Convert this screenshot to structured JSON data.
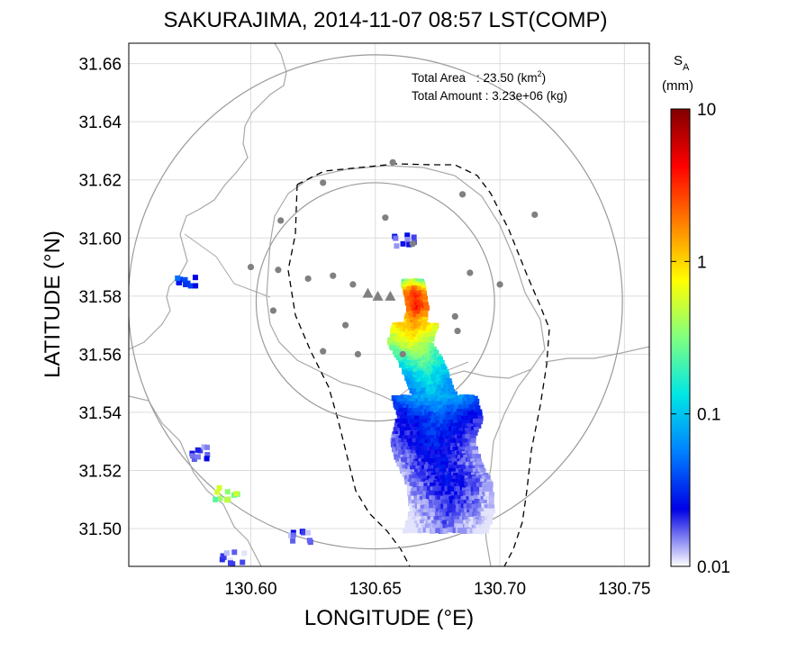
{
  "chart_data": {
    "type": "heatmap",
    "title": "SAKURAJIMA, 2014-11-07 08:57 LST(COMP)",
    "xlabel": "LONGITUDE (°E)",
    "ylabel": "LATITUDE (°N)",
    "xlim": [
      130.551,
      130.76
    ],
    "ylim": [
      31.487,
      31.667
    ],
    "x_ticks": [
      "130.60",
      "130.65",
      "130.70",
      "130.75"
    ],
    "y_ticks": [
      "31.50",
      "31.52",
      "31.54",
      "31.56",
      "31.58",
      "31.60",
      "31.62",
      "31.64",
      "31.66"
    ],
    "x_tick_values": [
      130.6,
      130.65,
      130.7,
      130.75
    ],
    "y_tick_values": [
      31.5,
      31.52,
      31.54,
      31.56,
      31.58,
      31.6,
      31.62,
      31.64,
      31.66
    ],
    "grid": true,
    "annotations": {
      "total_area_label": "Total Area",
      "total_area_sep": ": 23.50 (km",
      "total_area_unit_close": ")",
      "total_area_sup": "2",
      "total_amount_label": "Total Amount : 3.23e+06 (kg)"
    },
    "colorbar": {
      "label_main": "S",
      "label_sub": "A",
      "unit": "(mm)",
      "scale": "log",
      "range": [
        0.01,
        10
      ],
      "ticks": [
        "10",
        "1",
        "0.1",
        "0.01"
      ],
      "tick_values": [
        10,
        1,
        0.1,
        0.01
      ],
      "colors": [
        "#ffffff",
        "#0000e6",
        "#0080ff",
        "#00e6e6",
        "#80ff80",
        "#ffff00",
        "#ff8000",
        "#ff0000",
        "#800000"
      ]
    },
    "range_circles": [
      {
        "center": [
          130.65,
          31.578
        ],
        "radius_deg_lat": 0.085
      },
      {
        "center": [
          130.65,
          31.578
        ],
        "radius_deg_lat": 0.041
      }
    ],
    "volcano_markers": [
      {
        "lon": 130.647,
        "lat": 31.581
      },
      {
        "lon": 130.651,
        "lat": 31.58
      },
      {
        "lon": 130.656,
        "lat": 31.58
      }
    ],
    "stations": [
      {
        "lon": 130.657,
        "lat": 31.626
      },
      {
        "lon": 130.629,
        "lat": 31.619
      },
      {
        "lon": 130.685,
        "lat": 31.615
      },
      {
        "lon": 130.714,
        "lat": 31.608
      },
      {
        "lon": 130.612,
        "lat": 31.606
      },
      {
        "lon": 130.654,
        "lat": 31.607
      },
      {
        "lon": 130.665,
        "lat": 31.598
      },
      {
        "lon": 130.6,
        "lat": 31.59
      },
      {
        "lon": 130.611,
        "lat": 31.589
      },
      {
        "lon": 130.633,
        "lat": 31.587
      },
      {
        "lon": 130.623,
        "lat": 31.586
      },
      {
        "lon": 130.641,
        "lat": 31.584
      },
      {
        "lon": 130.688,
        "lat": 31.588
      },
      {
        "lon": 130.7,
        "lat": 31.584
      },
      {
        "lon": 130.609,
        "lat": 31.575
      },
      {
        "lon": 130.638,
        "lat": 31.57
      },
      {
        "lon": 130.683,
        "lat": 31.568
      },
      {
        "lon": 130.629,
        "lat": 31.561
      },
      {
        "lon": 130.643,
        "lat": 31.56
      },
      {
        "lon": 130.661,
        "lat": 31.56
      },
      {
        "lon": 130.682,
        "lat": 31.573
      }
    ],
    "ash_plume_cells": [
      {
        "lon": 130.665,
        "lat": 31.585,
        "value": 0.5
      },
      {
        "lon": 130.666,
        "lat": 31.581,
        "value": 3.0
      },
      {
        "lon": 130.667,
        "lat": 31.576,
        "value": 4.0
      },
      {
        "lon": 130.666,
        "lat": 31.57,
        "value": 1.5
      },
      {
        "lon": 130.664,
        "lat": 31.564,
        "value": 0.7
      },
      {
        "lon": 130.668,
        "lat": 31.558,
        "value": 0.3
      },
      {
        "lon": 130.671,
        "lat": 31.552,
        "value": 0.15
      },
      {
        "lon": 130.674,
        "lat": 31.545,
        "value": 0.09
      },
      {
        "lon": 130.676,
        "lat": 31.538,
        "value": 0.04
      },
      {
        "lon": 130.673,
        "lat": 31.53,
        "value": 0.03
      },
      {
        "lon": 130.676,
        "lat": 31.522,
        "value": 0.025
      },
      {
        "lon": 130.68,
        "lat": 31.515,
        "value": 0.025
      },
      {
        "lon": 130.681,
        "lat": 31.506,
        "value": 0.02
      },
      {
        "lon": 130.678,
        "lat": 31.498,
        "value": 0.015
      },
      {
        "lon": 130.662,
        "lat": 31.599,
        "value": 0.02
      },
      {
        "lon": 130.575,
        "lat": 31.585,
        "value": 0.04
      },
      {
        "lon": 130.58,
        "lat": 31.526,
        "value": 0.02
      },
      {
        "lon": 130.59,
        "lat": 31.512,
        "value": 0.4
      },
      {
        "lon": 130.62,
        "lat": 31.497,
        "value": 0.02
      },
      {
        "lon": 130.593,
        "lat": 31.49,
        "value": 0.015
      }
    ]
  }
}
